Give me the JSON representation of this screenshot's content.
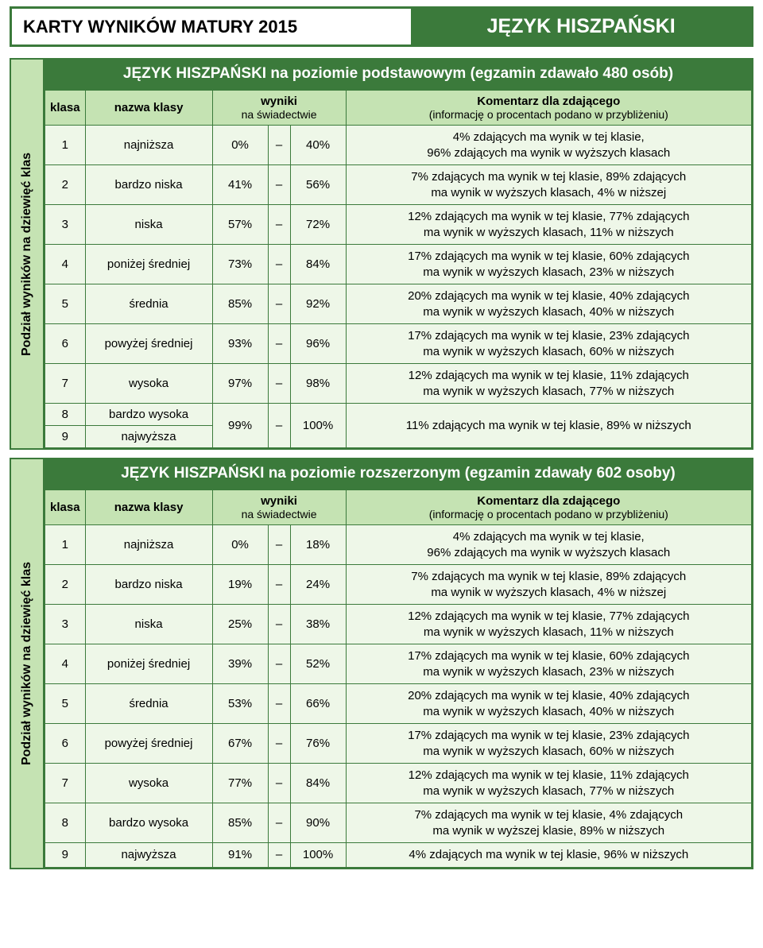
{
  "colors": {
    "brand_green": "#3b7a3b",
    "light_green": "#c5e3b3",
    "row_bg": "#eef7e8",
    "white": "#ffffff",
    "black": "#000000"
  },
  "header": {
    "left": "KARTY WYNIKÓW MATURY 2015",
    "right": "JĘZYK HISZPAŃSKI"
  },
  "vlabel": "Podział wyników na dziewięć klas",
  "col_headers": {
    "klasa": "klasa",
    "nazwa": "nazwa klasy",
    "wyniki_l1": "wyniki",
    "wyniki_l2": "na świadectwie",
    "komentarz_l1": "Komentarz dla zdającego",
    "komentarz_l2": "(informację o procentach podano w przybliżeniu)"
  },
  "sections": [
    {
      "title": "JĘZYK HISZPAŃSKI na poziomie podstawowym (egzamin zdawało 480 osób)",
      "merge89": true,
      "rows": [
        {
          "k": "1",
          "name": "najniższa",
          "from": "0%",
          "to": "40%",
          "c": "4% zdających ma wynik w tej klasie,\n96% zdających ma wynik w wyższych klasach"
        },
        {
          "k": "2",
          "name": "bardzo niska",
          "from": "41%",
          "to": "56%",
          "c": "7% zdających ma wynik w tej klasie, 89% zdających\nma wynik w wyższych klasach, 4% w niższej"
        },
        {
          "k": "3",
          "name": "niska",
          "from": "57%",
          "to": "72%",
          "c": "12% zdających ma wynik w tej klasie, 77% zdających\nma wynik w wyższych klasach, 11% w niższych"
        },
        {
          "k": "4",
          "name": "poniżej średniej",
          "from": "73%",
          "to": "84%",
          "c": "17% zdających ma wynik w tej klasie, 60% zdających\nma wynik w wyższych klasach, 23% w niższych"
        },
        {
          "k": "5",
          "name": "średnia",
          "from": "85%",
          "to": "92%",
          "c": "20% zdających ma wynik w tej klasie, 40% zdających\nma wynik w wyższych klasach, 40% w niższych"
        },
        {
          "k": "6",
          "name": "powyżej średniej",
          "from": "93%",
          "to": "96%",
          "c": "17% zdających ma wynik w tej klasie, 23% zdających\nma wynik w wyższych klasach, 60% w niższych"
        },
        {
          "k": "7",
          "name": "wysoka",
          "from": "97%",
          "to": "98%",
          "c": "12% zdających ma wynik w tej klasie, 11% zdających\nma wynik w wyższych klasach, 77% w niższych"
        },
        {
          "k": "8",
          "name": "bardzo wysoka",
          "from": "99%",
          "to": "100%",
          "c": "11% zdających ma wynik w tej klasie, 89% w niższych"
        },
        {
          "k": "9",
          "name": "najwyższa",
          "from": "",
          "to": "",
          "c": ""
        }
      ]
    },
    {
      "title": "JĘZYK HISZPAŃSKI na poziomie rozszerzonym (egzamin zdawały 602 osoby)",
      "merge89": false,
      "rows": [
        {
          "k": "1",
          "name": "najniższa",
          "from": "0%",
          "to": "18%",
          "c": "4% zdających ma wynik w tej klasie,\n96% zdających ma wynik w wyższych klasach"
        },
        {
          "k": "2",
          "name": "bardzo niska",
          "from": "19%",
          "to": "24%",
          "c": "7% zdających ma wynik w tej klasie, 89% zdających\nma wynik w wyższych klasach, 4% w niższej"
        },
        {
          "k": "3",
          "name": "niska",
          "from": "25%",
          "to": "38%",
          "c": "12% zdających ma wynik w tej klasie, 77% zdających\nma wynik w wyższych klasach, 11% w niższych"
        },
        {
          "k": "4",
          "name": "poniżej średniej",
          "from": "39%",
          "to": "52%",
          "c": "17% zdających ma wynik w tej klasie, 60% zdających\nma wynik w wyższych klasach, 23% w niższych"
        },
        {
          "k": "5",
          "name": "średnia",
          "from": "53%",
          "to": "66%",
          "c": "20% zdających ma wynik w tej klasie, 40% zdających\nma wynik w wyższych klasach, 40% w niższych"
        },
        {
          "k": "6",
          "name": "powyżej średniej",
          "from": "67%",
          "to": "76%",
          "c": "17% zdających ma wynik w tej klasie, 23% zdających\nma wynik w wyższych klasach, 60% w niższych"
        },
        {
          "k": "7",
          "name": "wysoka",
          "from": "77%",
          "to": "84%",
          "c": "12% zdających ma wynik w tej klasie, 11% zdających\nma wynik w wyższych klasach, 77% w niższych"
        },
        {
          "k": "8",
          "name": "bardzo wysoka",
          "from": "85%",
          "to": "90%",
          "c": "7% zdających ma wynik w tej klasie, 4% zdających\nma wynik w wyższej klasie, 89% w niższych"
        },
        {
          "k": "9",
          "name": "najwyższa",
          "from": "91%",
          "to": "100%",
          "c": "4% zdających ma wynik w tej klasie, 96% w niższych"
        }
      ]
    }
  ]
}
